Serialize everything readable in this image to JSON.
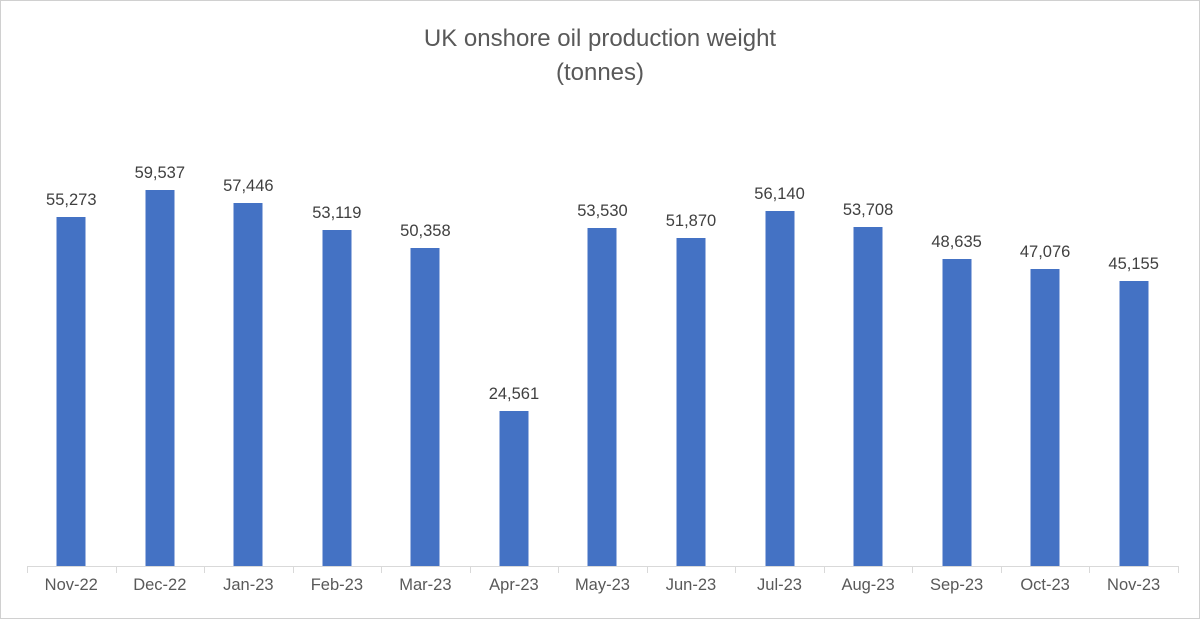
{
  "chart_data": {
    "type": "bar",
    "title": "UK onshore oil production weight",
    "subtitle": "(tonnes)",
    "categories": [
      "Nov-22",
      "Dec-22",
      "Jan-23",
      "Feb-23",
      "Mar-23",
      "Apr-23",
      "May-23",
      "Jun-23",
      "Jul-23",
      "Aug-23",
      "Sep-23",
      "Oct-23",
      "Nov-23"
    ],
    "values": [
      55273,
      59537,
      57446,
      53119,
      50358,
      24561,
      53530,
      51870,
      56140,
      53708,
      48635,
      47076,
      45155
    ],
    "data_labels": [
      "55,273",
      "59,537",
      "57,446",
      "53,119",
      "50,358",
      "24,561",
      "53,530",
      "51,870",
      "56,140",
      "53,708",
      "48,635",
      "47,076",
      "45,155"
    ],
    "xlabel": "",
    "ylabel": "",
    "ylim": [
      0,
      60000
    ],
    "grid": false,
    "legend": false,
    "y_axis_shown": false,
    "bar_color": "#4472C4",
    "title_color": "#595959",
    "data_label_color": "#404040",
    "axis_label_color": "#595959",
    "axis_line_color": "#D9D9D9"
  }
}
